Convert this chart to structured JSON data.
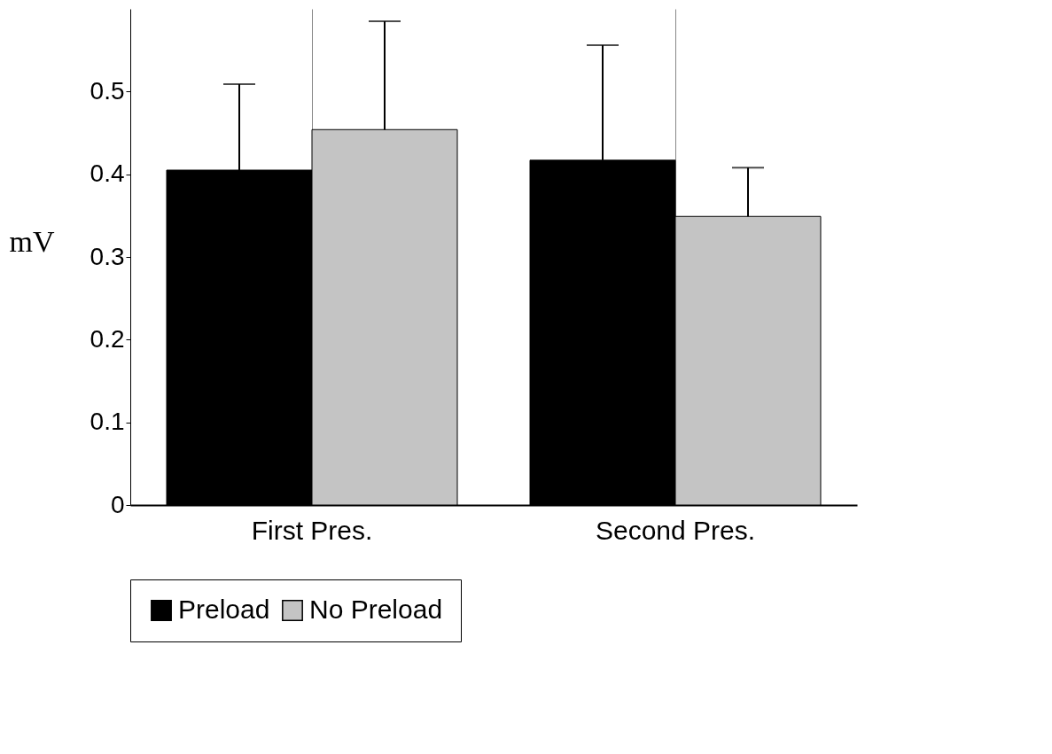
{
  "chart_data": {
    "type": "bar",
    "ylabel": "mV",
    "categories": [
      "First Pres.",
      "Second Pres."
    ],
    "series": [
      {
        "name": "Preload",
        "color": "#000000",
        "values": [
          0.405,
          0.417
        ],
        "errors": [
          [
            0.405,
            0.509
          ],
          [
            0.417,
            0.556
          ]
        ]
      },
      {
        "name": "No Preload",
        "color": "#c4c4c4",
        "values": [
          0.454,
          0.349
        ],
        "errors": [
          [
            0.454,
            0.585
          ],
          [
            0.349,
            0.408
          ]
        ]
      }
    ],
    "ylim": [
      0,
      0.6
    ],
    "yticks": [
      0,
      0.1,
      0.2,
      0.3,
      0.4,
      0.5
    ],
    "grid": "x",
    "legend": "bottom"
  }
}
